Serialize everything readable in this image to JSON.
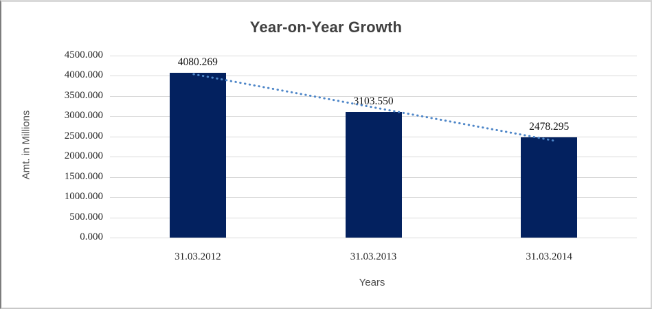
{
  "chart_data": {
    "type": "bar",
    "title": "Year-on-Year Growth",
    "xlabel": "Years",
    "ylabel": "Amt. in Millions",
    "categories": [
      "31.03.2012",
      "31.03.2013",
      "31.03.2014"
    ],
    "values": [
      4080.269,
      3103.55,
      2478.295
    ],
    "value_labels": [
      "4080.269",
      "3103.550",
      "2478.295"
    ],
    "ylim": [
      0,
      4500
    ],
    "ytick_step": 500,
    "ytick_labels": [
      "0.000",
      "500.000",
      "1000.000",
      "1500.000",
      "2000.000",
      "2500.000",
      "3000.000",
      "3500.000",
      "4000.000",
      "4500.000"
    ],
    "grid": true,
    "legend": "none",
    "bar_color": "#03215f",
    "gridline_color": "#d9d9d9",
    "trendline": {
      "type": "linear",
      "style": "dotted",
      "color": "#4e86c8"
    }
  }
}
